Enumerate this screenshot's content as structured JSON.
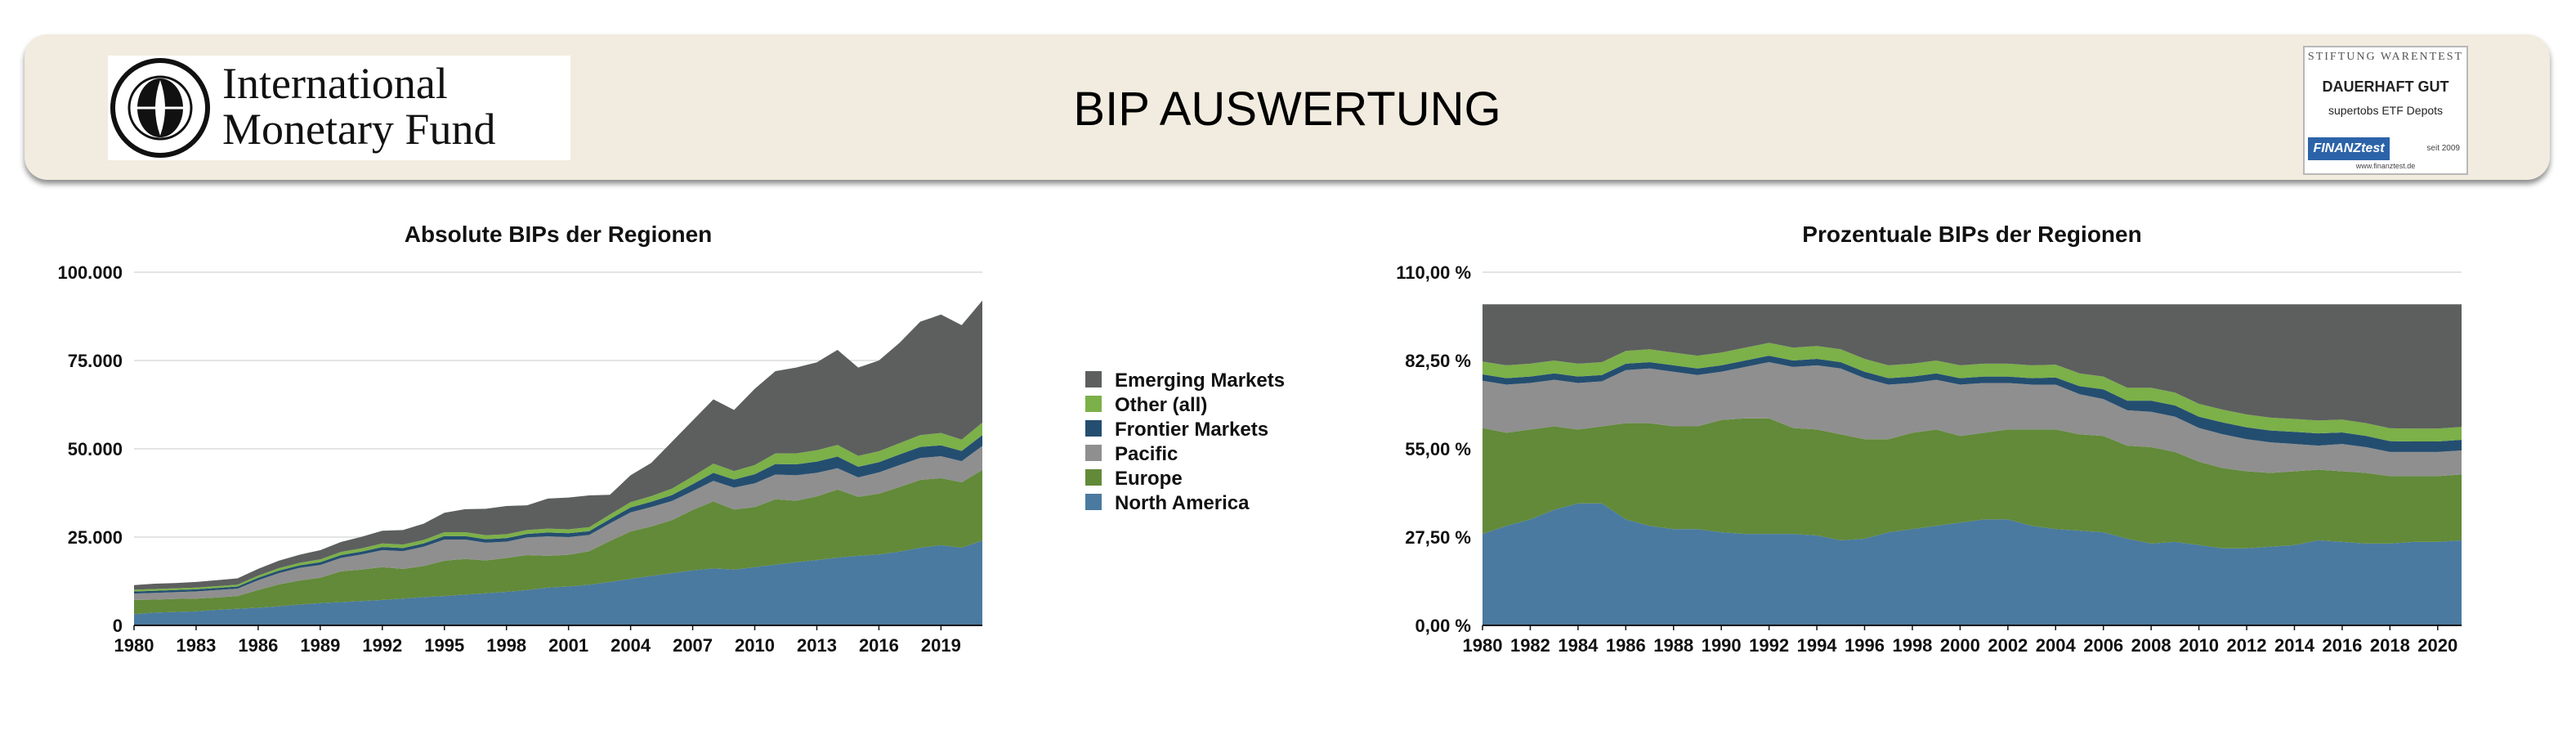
{
  "header": {
    "title": "BIP AUSWERTUNG",
    "logo_line1": "International",
    "logo_line2": "Monetary Fund",
    "badge": {
      "brand": "STIFTUNG WARENTEST",
      "rating": "DAUERHAFT GUT",
      "product": "supertobs ETF Depots",
      "logo": "FINANZtest",
      "since": "seit 2009",
      "url": "www.finanztest.de"
    }
  },
  "colors": {
    "North America": "#4a7aa0",
    "Europe": "#628a39",
    "Pacific": "#8f8f8f",
    "Frontier Markets": "#244e70",
    "Other (all)": "#7cb049",
    "Emerging Markets": "#5c5f5e"
  },
  "legend": {
    "items": [
      "Emerging Markets",
      "Other (all)",
      "Frontier Markets",
      "Pacific",
      "Europe",
      "North America"
    ]
  },
  "chart_data": [
    {
      "type": "area",
      "stacked": true,
      "title": "Absolute BIPs der Regionen",
      "ylim": [
        0,
        100000
      ],
      "yticks": [
        "100.000",
        "75.000",
        "50.000",
        "25.000",
        "0"
      ],
      "xticks": [
        "1980",
        "1983",
        "1986",
        "1989",
        "1992",
        "1995",
        "1998",
        "2001",
        "2004",
        "2007",
        "2010",
        "2013",
        "2016",
        "2019"
      ],
      "x": [
        1980,
        1981,
        1982,
        1983,
        1984,
        1985,
        1986,
        1987,
        1988,
        1989,
        1990,
        1991,
        1992,
        1993,
        1994,
        1995,
        1996,
        1997,
        1998,
        1999,
        2000,
        2001,
        2002,
        2003,
        2004,
        2005,
        2006,
        2007,
        2008,
        2009,
        2010,
        2011,
        2012,
        2013,
        2014,
        2015,
        2016,
        2017,
        2018,
        2019,
        2020,
        2021
      ],
      "series": [
        {
          "name": "North America",
          "values": [
            3200,
            3600,
            3800,
            4000,
            4400,
            4700,
            5000,
            5400,
            5900,
            6300,
            6600,
            6900,
            7200,
            7600,
            8000,
            8300,
            8700,
            9100,
            9500,
            10000,
            10700,
            11000,
            11500,
            12300,
            13200,
            14000,
            14800,
            15600,
            16100,
            15800,
            16500,
            17200,
            17900,
            18500,
            19200,
            19700,
            20100,
            20900,
            22000,
            22700,
            22000,
            24000
          ]
        },
        {
          "name": "Europe",
          "values": [
            4000,
            3700,
            3700,
            3600,
            3500,
            3600,
            5000,
            6200,
            6800,
            7200,
            8700,
            8900,
            9300,
            8400,
            8800,
            10000,
            10100,
            9300,
            9600,
            9900,
            9000,
            9000,
            9500,
            11600,
            13400,
            14000,
            15000,
            17100,
            19000,
            17000,
            17000,
            18500,
            17400,
            18000,
            19300,
            16700,
            17200,
            18300,
            19200,
            19000,
            18500,
            20000
          ]
        },
        {
          "name": "Pacific",
          "values": [
            1800,
            1900,
            1900,
            2000,
            2100,
            2100,
            2800,
            3200,
            3600,
            3600,
            3800,
            4300,
            4800,
            5000,
            5500,
            6000,
            5500,
            5000,
            4600,
            5000,
            5500,
            5000,
            4600,
            5000,
            5400,
            5500,
            5400,
            5300,
            5800,
            6200,
            6700,
            7000,
            7200,
            6700,
            6000,
            5500,
            6000,
            6200,
            6200,
            6200,
            6000,
            6800
          ]
        },
        {
          "name": "Frontier Markets",
          "values": [
            600,
            600,
            600,
            600,
            600,
            600,
            700,
            700,
            700,
            800,
            800,
            800,
            900,
            900,
            900,
            1000,
            1000,
            1000,
            1000,
            1000,
            1100,
            1100,
            1100,
            1200,
            1400,
            1500,
            1700,
            2000,
            2300,
            2300,
            2600,
            3000,
            3100,
            3200,
            3300,
            3000,
            2900,
            3000,
            3100,
            3100,
            2900,
            3100
          ]
        },
        {
          "name": "Other (all)",
          "values": [
            500,
            500,
            500,
            500,
            500,
            500,
            600,
            700,
            700,
            800,
            900,
            900,
            1000,
            1000,
            1000,
            1100,
            1100,
            1100,
            1100,
            1100,
            1100,
            1100,
            1100,
            1300,
            1500,
            1600,
            1800,
            2200,
            2600,
            2400,
            2600,
            3000,
            3100,
            3200,
            3300,
            3100,
            3100,
            3200,
            3400,
            3500,
            3200,
            3500
          ]
        },
        {
          "name": "Emerging Markets",
          "values": [
            1300,
            1500,
            1500,
            1600,
            1700,
            1800,
            1900,
            2100,
            2300,
            2600,
            2800,
            3300,
            3600,
            4100,
            4600,
            5500,
            6500,
            7500,
            8000,
            7000,
            8500,
            9000,
            9000,
            5600,
            7600,
            9400,
            13300,
            15800,
            18200,
            17300,
            21600,
            23300,
            24300,
            24900,
            26900,
            25000,
            25700,
            28400,
            32100,
            33500,
            32400,
            34600
          ]
        }
      ]
    },
    {
      "type": "area",
      "stacked": true,
      "percent": true,
      "title": "Prozentuale BIPs der Regionen",
      "ylim": [
        0,
        110
      ],
      "yticks": [
        "110,00 %",
        "82,50 %",
        "55,00 %",
        "27,50 %",
        "0,00 %"
      ],
      "xticks": [
        "1980",
        "1982",
        "1984",
        "1986",
        "1988",
        "1990",
        "1992",
        "1994",
        "1996",
        "1998",
        "2000",
        "2002",
        "2004",
        "2006",
        "2008",
        "2010",
        "2012",
        "2014",
        "2016",
        "2018",
        "2020"
      ],
      "x": [
        1980,
        1981,
        1982,
        1983,
        1984,
        1985,
        1986,
        1987,
        1988,
        1989,
        1990,
        1991,
        1992,
        1993,
        1994,
        1995,
        1996,
        1997,
        1998,
        1999,
        2000,
        2001,
        2002,
        2003,
        2004,
        2005,
        2006,
        2007,
        2008,
        2009,
        2010,
        2011,
        2012,
        2013,
        2014,
        2015,
        2016,
        2017,
        2018,
        2019,
        2020,
        2021
      ],
      "series": [
        {
          "name": "North America",
          "values": [
            28.5,
            31,
            33,
            36,
            38,
            38,
            33,
            31,
            30,
            30,
            29,
            28.5,
            28.5,
            28.5,
            28,
            26.5,
            27,
            29,
            30,
            31,
            32,
            33,
            33,
            31,
            30,
            29.5,
            29,
            27,
            25.5,
            26,
            25,
            24,
            24,
            24.5,
            25,
            26.5,
            26,
            25.5,
            25.5,
            26,
            26,
            26.5
          ]
        },
        {
          "name": "Europe",
          "values": [
            33,
            29,
            28,
            26,
            23,
            24,
            30,
            32,
            32,
            32,
            35,
            36,
            36,
            33,
            33,
            33,
            31,
            29,
            30,
            30,
            27,
            27,
            28,
            30,
            31,
            30,
            30,
            29,
            30,
            28,
            26,
            25,
            24,
            23,
            23,
            22,
            22,
            22,
            21,
            20.5,
            20.5,
            20.5
          ]
        },
        {
          "name": "Pacific",
          "values": [
            14.7,
            15,
            14.5,
            14.5,
            14.5,
            14,
            16.5,
            17,
            17,
            16,
            15,
            16,
            17.5,
            19,
            20,
            20.5,
            19,
            17,
            15.5,
            15.5,
            16,
            15.5,
            14.5,
            14,
            14,
            12.5,
            11.5,
            11,
            11,
            11,
            10.5,
            10.5,
            10,
            9.5,
            8.5,
            7.5,
            8.5,
            8,
            7.5,
            7.5,
            7.5,
            7.5
          ]
        },
        {
          "name": "Frontier Markets",
          "values": [
            2,
            2,
            2,
            2,
            2,
            2,
            2,
            2,
            2,
            2,
            2,
            2,
            2,
            2,
            2,
            2,
            2,
            2,
            2,
            2,
            2,
            2,
            2,
            2,
            2.2,
            2.5,
            3,
            3,
            3.5,
            3.5,
            3.5,
            3.7,
            3.7,
            3.7,
            3.8,
            3.8,
            3.6,
            3.5,
            3.4,
            3.3,
            3.3,
            3.3
          ]
        },
        {
          "name": "Other (all)",
          "values": [
            4,
            4,
            4,
            4,
            4,
            4,
            4,
            4,
            4,
            4,
            4,
            4,
            4,
            4,
            4,
            4,
            4,
            4,
            4,
            4,
            4,
            4,
            4,
            4,
            4,
            4,
            4,
            4,
            4,
            4,
            4,
            4,
            4,
            4,
            4,
            4,
            4,
            4,
            4,
            4,
            4,
            4
          ]
        },
        {
          "name": "Emerging Markets",
          "values": [
            17.8,
            19,
            18.5,
            17.5,
            18.5,
            18,
            14.5,
            14,
            15,
            16,
            15,
            13.5,
            12,
            13.5,
            13,
            14,
            17,
            19,
            18.5,
            17.5,
            19,
            18.5,
            18.5,
            19,
            18.8,
            21.5,
            22.5,
            26,
            26,
            27.5,
            31,
            32.8,
            34.3,
            35.3,
            35.7,
            36.2,
            35.9,
            37,
            38.6,
            38.7,
            38.7,
            38.2
          ]
        }
      ]
    }
  ]
}
